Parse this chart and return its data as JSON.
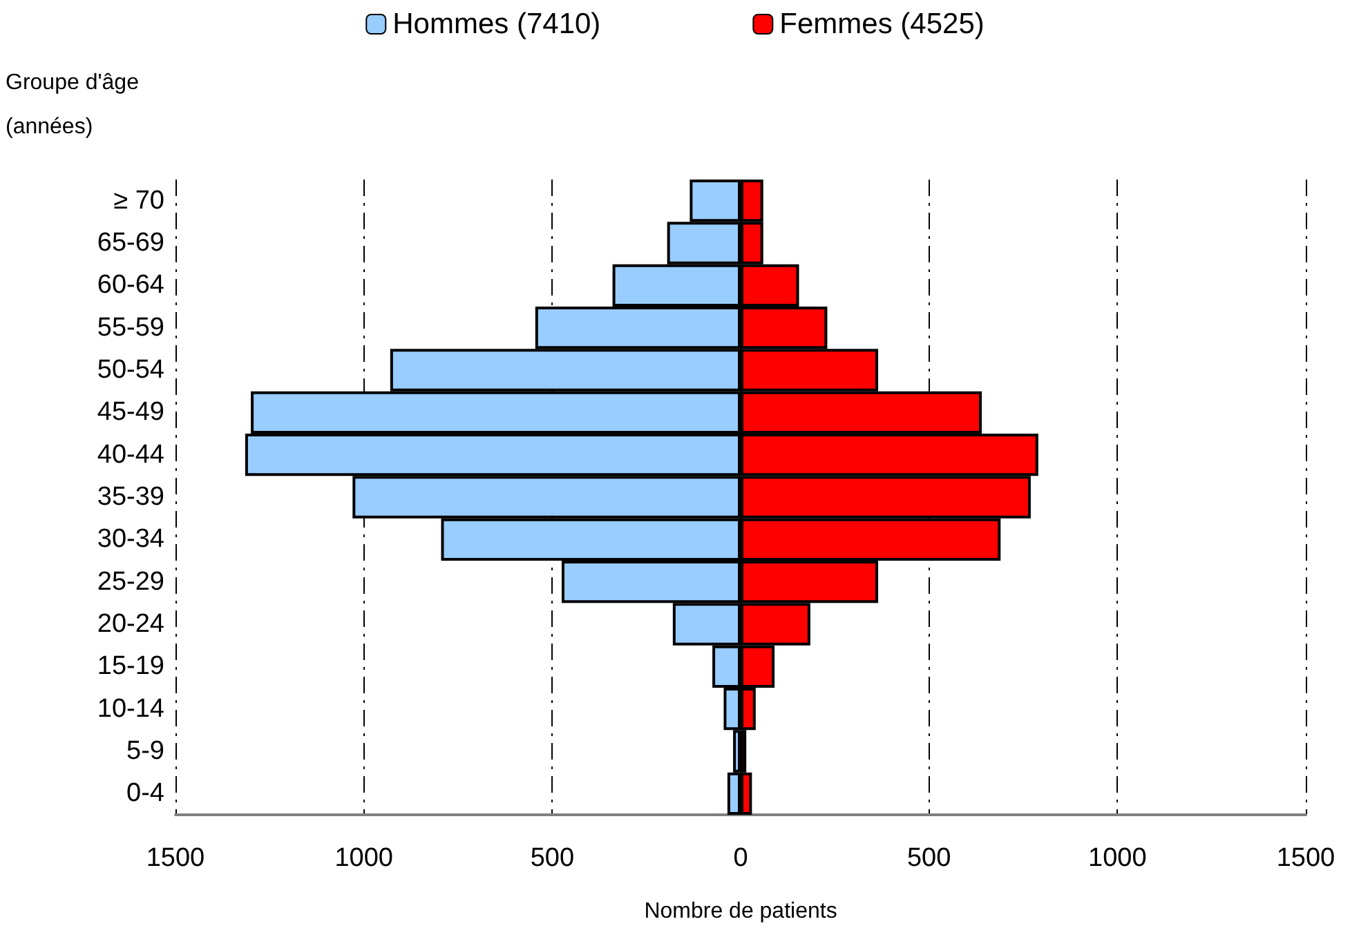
{
  "chart_data": {
    "type": "bar",
    "orientation": "horizontal",
    "xlabel": "Nombre de patients",
    "ylabel": "Groupe d'âge (années)",
    "categories": [
      "≥ 70",
      "65-69",
      "60-64",
      "55-59",
      "50-54",
      "45-49",
      "40-44",
      "35-39",
      "30-34",
      "25-29",
      "20-24",
      "15-19",
      "10-14",
      "5-9",
      "0-4"
    ],
    "series": [
      {
        "name": "Hommes (7410)",
        "color": "#99ccff",
        "values": [
          -135,
          -195,
          -340,
          -545,
          -930,
          -1300,
          -1315,
          -1030,
          -795,
          -475,
          -180,
          -75,
          -45,
          -20,
          -35
        ]
      },
      {
        "name": "Femmes (4525)",
        "color": "#ff0000",
        "values": [
          60,
          60,
          155,
          230,
          365,
          640,
          790,
          770,
          690,
          365,
          185,
          90,
          40,
          15,
          30
        ]
      }
    ],
    "xlim": [
      -1500,
      1500
    ],
    "xticks": [
      {
        "value": -1500,
        "label": "1500"
      },
      {
        "value": -1000,
        "label": "1000"
      },
      {
        "value": -500,
        "label": "500"
      },
      0,
      500,
      1000,
      1500
    ],
    "grid": "x",
    "legend": "top",
    "stacked": true
  }
}
